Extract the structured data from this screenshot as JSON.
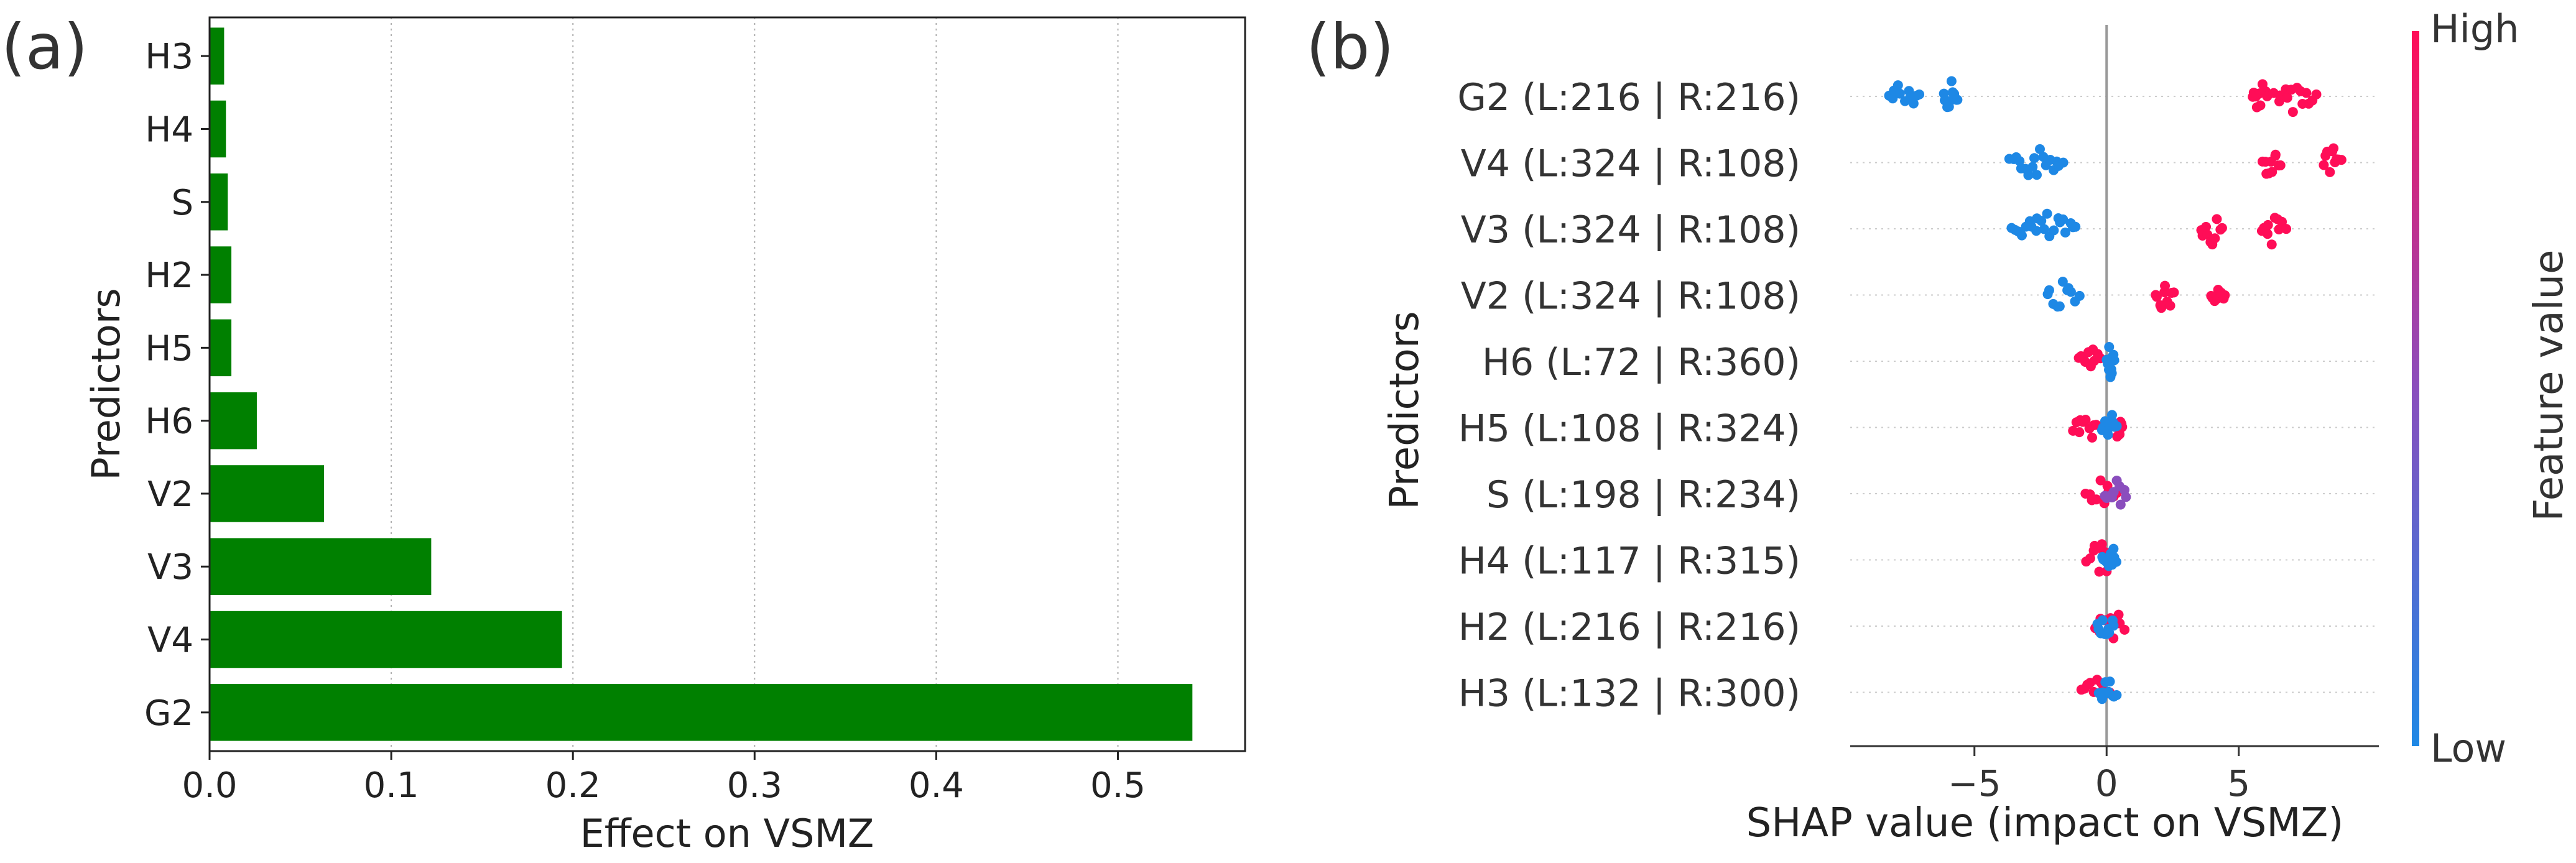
{
  "panel_a_label": "(a)",
  "panel_b_label": "(b)",
  "colors": {
    "bar": "#008000",
    "low": "#1e88e5",
    "high": "#ff0d57",
    "zero_line": "#999999",
    "grid": "#b0b0b0"
  },
  "chart_data": [
    {
      "type": "bar",
      "orientation": "horizontal",
      "categories": [
        "G2",
        "V4",
        "V3",
        "V2",
        "H6",
        "H5",
        "H2",
        "S",
        "H4",
        "H3"
      ],
      "values": [
        0.541,
        0.194,
        0.122,
        0.063,
        0.026,
        0.012,
        0.012,
        0.01,
        0.009,
        0.008
      ],
      "xlabel": "Effect on VSMZ",
      "ylabel": "Predictors",
      "xlim": [
        0,
        0.57
      ],
      "xticks": [
        0.0,
        0.1,
        0.2,
        0.3,
        0.4,
        0.5
      ],
      "xtick_labels": [
        "0.0",
        "0.1",
        "0.2",
        "0.3",
        "0.4",
        "0.5"
      ],
      "grid": "vertical dotted"
    },
    {
      "type": "scatter",
      "subtype": "shap-beeswarm",
      "categories": [
        "G2 (L:216 | R:216)",
        "V4 (L:324 | R:108)",
        "V3 (L:324 | R:108)",
        "V2 (L:324 | R:108)",
        "H6 (L:72 | R:360)",
        "H5 (L:108 | R:324)",
        "S (L:198 | R:234)",
        "H4 (L:117 | R:315)",
        "H2 (L:216 | R:216)",
        "H3 (L:132 | R:300)"
      ],
      "series": [
        {
          "category": "G2 (L:216 | R:216)",
          "low_ranges": [
            [
              -8.3,
              -7.0
            ],
            [
              -6.2,
              -5.6
            ]
          ],
          "high_ranges": [
            [
              5.5,
              6.1
            ],
            [
              6.3,
              8.0
            ]
          ]
        },
        {
          "category": "V4 (L:324 | R:108)",
          "low_ranges": [
            [
              -3.7,
              -1.6
            ]
          ],
          "high_ranges": [
            [
              5.9,
              6.6
            ],
            [
              8.2,
              8.9
            ]
          ]
        },
        {
          "category": "V3 (L:324 | R:108)",
          "low_ranges": [
            [
              -3.6,
              -1.1
            ]
          ],
          "high_ranges": [
            [
              3.5,
              4.4
            ],
            [
              5.8,
              6.8
            ]
          ]
        },
        {
          "category": "V2 (L:324 | R:108)",
          "low_ranges": [
            [
              -2.3,
              -1.0
            ]
          ],
          "high_ranges": [
            [
              1.8,
              2.6
            ],
            [
              3.9,
              4.5
            ]
          ]
        },
        {
          "category": "H6 (L:72 | R:360)",
          "low_ranges": [
            [
              0.0,
              0.3
            ]
          ],
          "high_ranges": [
            [
              -1.1,
              -0.2
            ]
          ]
        },
        {
          "category": "H5 (L:108 | R:324)",
          "low_ranges": [
            [
              -0.2,
              0.4
            ]
          ],
          "high_ranges": [
            [
              -1.3,
              -0.3
            ],
            [
              0.3,
              0.6
            ]
          ]
        },
        {
          "category": "S (L:198 | R:234)",
          "low_ranges": [
            [
              -0.1,
              0.8
            ]
          ],
          "high_ranges": [
            [
              -0.8,
              0.4
            ]
          ],
          "mixed": true
        },
        {
          "category": "H4 (L:117 | R:315)",
          "low_ranges": [
            [
              -0.2,
              0.4
            ]
          ],
          "high_ranges": [
            [
              -0.8,
              0.3
            ]
          ]
        },
        {
          "category": "H2 (L:216 | R:216)",
          "low_ranges": [
            [
              -0.4,
              0.3
            ]
          ],
          "high_ranges": [
            [
              -0.5,
              0.7
            ]
          ]
        },
        {
          "category": "H3 (L:132 | R:300)",
          "low_ranges": [
            [
              -0.3,
              0.4
            ]
          ],
          "high_ranges": [
            [
              -1.0,
              0.2
            ]
          ]
        }
      ],
      "xlabel": "SHAP value (impact on VSMZ)",
      "ylabel": "Predictors",
      "xlim": [
        -9.7,
        10.3
      ],
      "xticks": [
        -5,
        0,
        5
      ],
      "xtick_labels": [
        "−5",
        "0",
        "5"
      ],
      "colorbar": {
        "label": "Feature value",
        "high_label": "High",
        "low_label": "Low"
      }
    }
  ]
}
